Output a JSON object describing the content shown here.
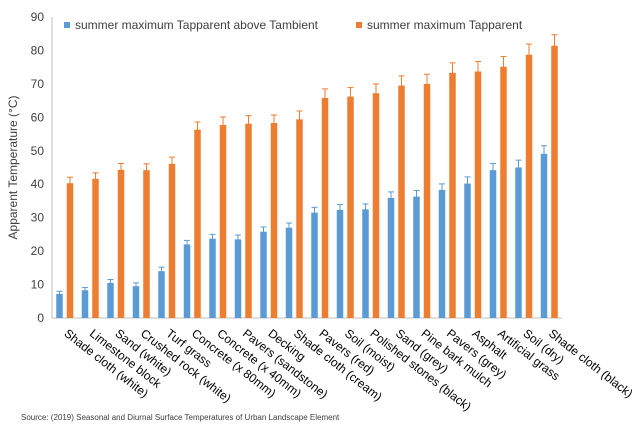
{
  "chart_data": {
    "type": "bar",
    "ylabel": "Apparent Temperature (°C)",
    "ylim": [
      0,
      90
    ],
    "yticks": [
      0,
      10,
      20,
      30,
      40,
      50,
      60,
      70,
      80,
      90
    ],
    "grid": false,
    "legend_position": "top-left",
    "categories": [
      "Shade cloth (white)",
      "Limestone block",
      "Sand (white)",
      "Crushed rock (white)",
      "Turf grass",
      "Concrete (x 80mm)",
      "Concrete (x 40mm)",
      "Pavers (sandstone)",
      "Decking",
      "Shade cloth (cream)",
      "Pavers (red)",
      "Soil (moist)",
      "Polished stones (black)",
      "Sand (grey)",
      "Pine bark mulch",
      "Pavers (grey)",
      "Asphalt",
      "Artificial grass",
      "Soil (dry)",
      "Shade cloth (black)"
    ],
    "series": [
      {
        "name": "summer maximum Tapparent above Tambient",
        "color": "#5B9BD5",
        "values": [
          7.2,
          8.3,
          10.5,
          9.5,
          14.0,
          22.0,
          23.7,
          23.5,
          25.8,
          27.0,
          31.5,
          32.3,
          32.5,
          35.9,
          36.3,
          38.3,
          40.2,
          44.2,
          45.0,
          49.1
        ],
        "errors": [
          0.8,
          0.8,
          1.0,
          1.0,
          1.2,
          1.2,
          1.3,
          1.3,
          1.4,
          1.4,
          1.6,
          1.6,
          1.6,
          1.8,
          1.8,
          1.8,
          2.0,
          2.0,
          2.2,
          2.4
        ]
      },
      {
        "name": "summer maximum Tapparent",
        "color": "#ED7D31",
        "values": [
          40.3,
          41.6,
          44.3,
          44.2,
          46.1,
          56.3,
          57.7,
          58.1,
          58.3,
          59.4,
          65.8,
          66.2,
          67.2,
          69.5,
          70.0,
          73.3,
          73.7,
          75.1,
          78.7,
          81.4
        ],
        "errors": [
          1.8,
          1.8,
          1.9,
          1.9,
          2.0,
          2.3,
          2.4,
          2.4,
          2.4,
          2.5,
          2.7,
          2.7,
          2.8,
          2.9,
          2.9,
          3.0,
          3.0,
          3.1,
          3.2,
          3.3
        ]
      }
    ]
  },
  "source": "Source: (2019) Seasonal and Diurnal Surface Temperatures of Urban Landscape Element"
}
